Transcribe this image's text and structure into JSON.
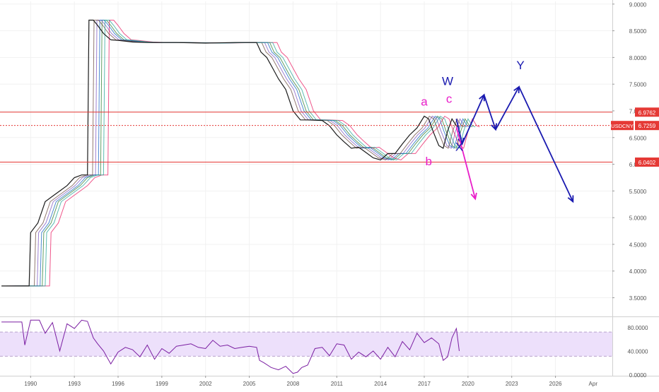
{
  "chart_data": [
    {
      "type": "line",
      "symbol": "USDCNY",
      "y_ticks": [
        3.5,
        4.0,
        4.5,
        5.0,
        5.5,
        6.0,
        6.5,
        7.0,
        7.5,
        8.0,
        8.5,
        9.0
      ],
      "y_tick_labels": [
        "3.5000",
        "4.0000",
        "4.5000",
        "5.0000",
        "5.5000",
        "6.0000",
        "6.5000",
        "7.0000",
        "7.5000",
        "8.0000",
        "8.5000",
        "9.0000"
      ],
      "ylim": [
        3.15,
        9.05
      ],
      "x_ticks": [
        1990,
        1993,
        1996,
        1999,
        2002,
        2005,
        2008,
        2011,
        2014,
        2017,
        2020,
        2023,
        2026
      ],
      "x_tick_labels": [
        "1990",
        "1993",
        "1996",
        "1999",
        "2002",
        "2005",
        "2008",
        "2011",
        "2014",
        "2017",
        "2020",
        "2023",
        "2026"
      ],
      "x_extra_label": "Apr",
      "xlim": [
        1987.9,
        2029.9
      ],
      "price_series": {
        "name": "USDCNY",
        "x": [
          1988.0,
          1989.9,
          1990.0,
          1990.5,
          1991.0,
          1991.5,
          1992.0,
          1992.5,
          1993.0,
          1993.5,
          1993.9,
          1994.0,
          1994.3,
          1994.6,
          1995.0,
          1995.5,
          1996.0,
          1997.0,
          1998.0,
          2000.0,
          2002.0,
          2004.0,
          2005.5,
          2005.8,
          2006.2,
          2006.6,
          2007.0,
          2007.5,
          2008.0,
          2008.5,
          2009.0,
          2010.0,
          2010.5,
          2011.0,
          2011.5,
          2012.0,
          2012.5,
          2013.0,
          2013.5,
          2014.0,
          2014.5,
          2015.0,
          2015.5,
          2016.0,
          2016.5,
          2017.0,
          2017.3,
          2017.6,
          2018.0,
          2018.3,
          2018.6,
          2018.9,
          2019.2,
          2019.4
        ],
        "values": [
          3.72,
          3.72,
          4.72,
          4.9,
          5.3,
          5.4,
          5.5,
          5.6,
          5.75,
          5.8,
          5.8,
          8.7,
          8.7,
          8.6,
          8.45,
          8.33,
          8.32,
          8.29,
          8.28,
          8.28,
          8.27,
          8.28,
          8.28,
          8.1,
          8.0,
          7.8,
          7.6,
          7.4,
          7.0,
          6.83,
          6.83,
          6.82,
          6.72,
          6.55,
          6.42,
          6.3,
          6.32,
          6.22,
          6.12,
          6.08,
          6.2,
          6.2,
          6.38,
          6.55,
          6.68,
          6.9,
          6.85,
          6.62,
          6.35,
          6.3,
          6.62,
          6.85,
          6.72,
          6.7
        ]
      },
      "horizontal_levels": [
        {
          "value": 6.9762,
          "label": "6.9762",
          "color": "#e53935"
        },
        {
          "value": 6.0402,
          "label": "6.0402",
          "color": "#e53935"
        },
        {
          "value": 6.7259,
          "label": "6.7259",
          "color": "#e53935",
          "dotted": true
        }
      ],
      "price_label": "USDCNY",
      "price_label_value": "6.7259",
      "annotations": [
        {
          "text": "a",
          "x": 2017.0,
          "y": 7.1,
          "color": "#e91ec9"
        },
        {
          "text": "b",
          "x": 2017.3,
          "y": 5.98,
          "color": "#e91ec9"
        },
        {
          "text": "c",
          "x": 2018.7,
          "y": 7.15,
          "color": "#e91ec9"
        },
        {
          "text": "W",
          "x": 2018.6,
          "y": 7.48,
          "color": "#1a1ab0"
        },
        {
          "text": "X",
          "x": 2019.4,
          "y": 6.25,
          "color": "#1a1ab0"
        },
        {
          "text": "Y",
          "x": 2023.6,
          "y": 7.78,
          "color": "#1a1ab0"
        }
      ],
      "projection_paths": [
        {
          "name": "blue-wxy-path",
          "color": "#1a1ab0",
          "points": [
            [
              2019.2,
              6.85
            ],
            [
              2019.6,
              6.38
            ],
            [
              2021.1,
              7.3
            ],
            [
              2021.9,
              6.65
            ],
            [
              2023.5,
              7.45
            ],
            [
              2027.2,
              5.3
            ]
          ]
        },
        {
          "name": "magenta-path",
          "color": "#e91ec9",
          "points": [
            [
              2019.2,
              6.7
            ],
            [
              2020.5,
              5.35
            ]
          ]
        }
      ]
    },
    {
      "type": "line",
      "indicator": "oscillator",
      "y_ticks": [
        0,
        40,
        80
      ],
      "y_tick_labels": [
        "0.0000",
        "40.0000",
        "80.0000"
      ],
      "ylim": [
        -2,
        96
      ],
      "band": [
        31,
        72
      ],
      "band_color": "#ede0fb",
      "series": {
        "x": [
          1988.0,
          1989.4,
          1989.6,
          1990.0,
          1990.3,
          1990.6,
          1991.0,
          1991.5,
          1992.0,
          1992.5,
          1993.0,
          1993.5,
          1993.9,
          1994.3,
          1994.6,
          1995.0,
          1995.5,
          1996.0,
          1996.5,
          1997.0,
          1997.5,
          1998.0,
          1998.5,
          1999.0,
          1999.5,
          2000.0,
          2000.5,
          2001.0,
          2001.5,
          2002.0,
          2002.5,
          2003.0,
          2003.5,
          2004.0,
          2004.5,
          2005.0,
          2005.5,
          2005.7,
          2006.0,
          2006.5,
          2007.0,
          2007.5,
          2008.0,
          2008.3,
          2008.6,
          2009.0,
          2009.5,
          2010.0,
          2010.5,
          2011.0,
          2011.5,
          2012.0,
          2012.5,
          2013.0,
          2013.5,
          2014.0,
          2014.5,
          2015.0,
          2015.5,
          2016.0,
          2016.5,
          2017.0,
          2017.5,
          2018.0,
          2018.3,
          2018.6,
          2018.9,
          2019.2,
          2019.4
        ],
        "values": [
          89,
          89,
          50,
          92,
          92,
          92,
          70,
          88,
          40,
          86,
          78,
          92,
          90,
          62,
          52,
          40,
          18,
          38,
          46,
          42,
          30,
          50,
          26,
          44,
          36,
          48,
          50,
          52,
          46,
          44,
          58,
          48,
          50,
          44,
          46,
          48,
          46,
          24,
          20,
          12,
          8,
          14,
          2,
          4,
          12,
          16,
          44,
          46,
          32,
          52,
          50,
          26,
          38,
          30,
          40,
          26,
          46,
          30,
          56,
          42,
          70,
          54,
          62,
          52,
          24,
          30,
          62,
          78,
          40
        ]
      }
    }
  ]
}
